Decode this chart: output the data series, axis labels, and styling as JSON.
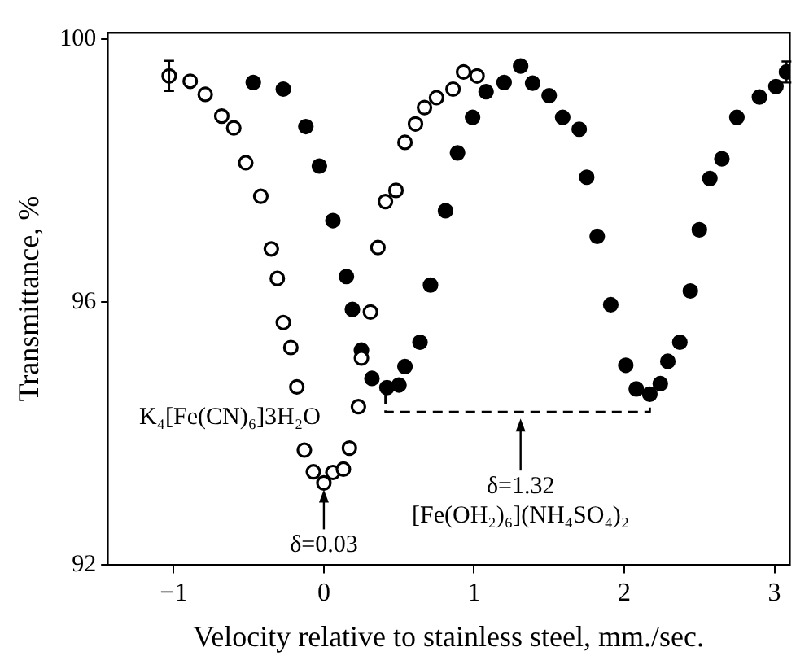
{
  "chart_data": {
    "type": "scatter",
    "xlabel": "Velocity relative to stainless steel, mm./sec.",
    "ylabel": "Transmittance, %",
    "xlim": [
      -1.44,
      3.1
    ],
    "xticks": [
      -1,
      0,
      1,
      2,
      3
    ],
    "ylim": [
      92,
      100.1
    ],
    "yticks": [
      92,
      96,
      100
    ],
    "grid": false,
    "legend": false,
    "marker": "circle",
    "series": [
      {
        "name": "K₄[Fe(CN)₆]3H₂O",
        "color": "#000000",
        "x": [
          -1.03,
          -0.89,
          -0.79,
          -0.68,
          -0.6,
          -0.52,
          -0.42,
          -0.35,
          -0.31,
          -0.27,
          -0.22,
          -0.18,
          -0.13,
          -0.07,
          0.0,
          0.06,
          0.13,
          0.17,
          0.23,
          0.25,
          0.31,
          0.36,
          0.41,
          0.48,
          0.54,
          0.61,
          0.67,
          0.75,
          0.86,
          0.93,
          1.02
        ],
        "values": [
          99.44,
          99.36,
          99.16,
          98.83,
          98.65,
          98.12,
          97.61,
          96.81,
          96.36,
          95.69,
          95.31,
          94.71,
          93.75,
          93.42,
          93.25,
          93.41,
          93.46,
          93.78,
          94.41,
          95.15,
          95.85,
          96.83,
          97.53,
          97.7,
          98.43,
          98.71,
          98.96,
          99.11,
          99.24,
          99.5,
          99.44
        ],
        "errors": [
          0.23,
          null,
          null,
          null,
          null,
          null,
          null,
          null,
          null,
          null,
          null,
          null,
          null,
          null,
          null,
          null,
          null,
          null,
          null,
          null,
          null,
          null,
          null,
          null,
          null,
          null,
          null,
          null,
          null,
          null,
          null
        ]
      },
      {
        "color": "#000000",
        "x": [
          -0.47,
          -0.27,
          -0.12,
          -0.03,
          0.06,
          0.15,
          0.19,
          0.25,
          0.32,
          0.42,
          0.5,
          0.54,
          0.64,
          0.71,
          0.81,
          0.89,
          0.99,
          1.08,
          1.2,
          1.31,
          1.39,
          1.5,
          1.59,
          1.7,
          1.75,
          1.82,
          1.91,
          2.01,
          2.08,
          2.17,
          2.24,
          2.29,
          2.37,
          2.44,
          2.5,
          2.57,
          2.65,
          2.75,
          2.9,
          3.01,
          3.08
        ],
        "values": [
          99.34,
          99.24,
          98.67,
          98.07,
          97.24,
          96.39,
          95.89,
          95.27,
          94.84,
          94.7,
          94.74,
          95.02,
          95.39,
          96.26,
          97.39,
          98.27,
          98.81,
          99.2,
          99.34,
          99.59,
          99.33,
          99.14,
          98.81,
          98.63,
          97.9,
          97.0,
          95.96,
          95.04,
          94.68,
          94.6,
          94.76,
          95.1,
          95.39,
          96.17,
          97.1,
          97.88,
          98.18,
          98.81,
          99.12,
          99.28,
          99.5
        ],
        "errors": [
          null,
          null,
          null,
          null,
          null,
          null,
          null,
          null,
          null,
          null,
          null,
          null,
          null,
          null,
          null,
          null,
          null,
          null,
          null,
          null,
          null,
          null,
          null,
          null,
          null,
          null,
          null,
          null,
          null,
          null,
          null,
          null,
          null,
          null,
          null,
          null,
          null,
          null,
          null,
          null,
          0.16
        ]
      },
      {
        "type": "line",
        "color": "#000000",
        "line_style": "dashed",
        "marker": "none",
        "x": [
          0.41,
          0.41,
          2.17,
          2.17
        ],
        "values": [
          94.6,
          94.33,
          94.33,
          94.6
        ]
      }
    ],
    "annotations": [
      {
        "text": "δ=0.03",
        "x": 0,
        "y": 93.25
      },
      {
        "text": "δ=1.32",
        "x": 1.31,
        "y": 94.33
      },
      "[Fe(OH₂)₆](NH₄SO₄)₂"
    ]
  }
}
